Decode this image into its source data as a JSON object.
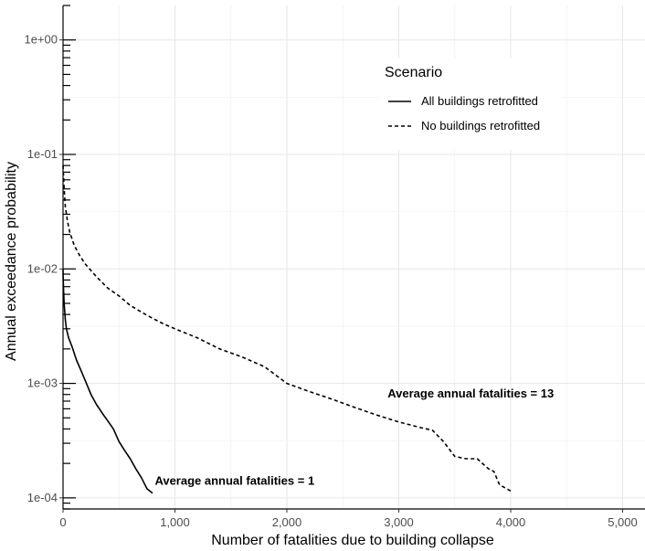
{
  "chart_data": {
    "type": "line",
    "title": "",
    "xlabel": "Number of fatalities due to building collapse",
    "ylabel": "Annual exceedance probability",
    "xlim": [
      0,
      5200
    ],
    "ylim": [
      8e-05,
      2
    ],
    "y_scale": "log",
    "grid": true,
    "x_ticks": [
      0,
      1000,
      2000,
      3000,
      4000,
      5000
    ],
    "x_tick_labels": [
      "0",
      "1,000",
      "2,000",
      "3,000",
      "4,000",
      "5,000"
    ],
    "y_ticks": [
      1,
      0.1,
      0.01,
      0.001,
      0.0001
    ],
    "y_tick_labels": [
      "1e+00",
      "1e-01",
      "1e-02",
      "1e-03",
      "1e-04"
    ],
    "legend": {
      "title": "Scenario",
      "position": "top-right"
    },
    "series": [
      {
        "name": "All buildings retrofitted",
        "line_style": "solid",
        "x": [
          0,
          2,
          5,
          10,
          20,
          30,
          50,
          80,
          120,
          160,
          200,
          250,
          300,
          350,
          400,
          450,
          500,
          550,
          600,
          650,
          700,
          750,
          800
        ],
        "y": [
          0.01,
          0.008,
          0.0065,
          0.005,
          0.0036,
          0.003,
          0.0025,
          0.0021,
          0.0016,
          0.0013,
          0.00105,
          0.0008,
          0.00065,
          0.00055,
          0.00047,
          0.0004,
          0.00031,
          0.00026,
          0.00022,
          0.00018,
          0.00015,
          0.00012,
          0.00011
        ]
      },
      {
        "name": "No buildings retrofitted",
        "line_style": "dashed",
        "x": [
          0,
          10,
          20,
          40,
          60,
          100,
          150,
          200,
          300,
          400,
          500,
          600,
          700,
          800,
          900,
          1000,
          1200,
          1400,
          1600,
          1800,
          2000,
          2200,
          2400,
          2600,
          2800,
          3000,
          3200,
          3300,
          3400,
          3500,
          3600,
          3700,
          3800,
          3850,
          3900,
          4000
        ],
        "y": [
          0.08,
          0.05,
          0.035,
          0.026,
          0.021,
          0.016,
          0.013,
          0.011,
          0.0085,
          0.0068,
          0.0058,
          0.0048,
          0.0042,
          0.0037,
          0.0033,
          0.003,
          0.0025,
          0.002,
          0.0017,
          0.0014,
          0.001,
          0.00085,
          0.00073,
          0.00062,
          0.00053,
          0.00046,
          0.00041,
          0.00039,
          0.00031,
          0.00023,
          0.00022,
          0.00022,
          0.00018,
          0.00017,
          0.00013,
          0.000115
        ]
      }
    ],
    "annotations": [
      {
        "text": "Average annual fatalities = 1",
        "x": 820,
        "y": 0.00013
      },
      {
        "text": "Average annual fatalities = 13",
        "x": 2900,
        "y": 0.00075
      }
    ]
  }
}
